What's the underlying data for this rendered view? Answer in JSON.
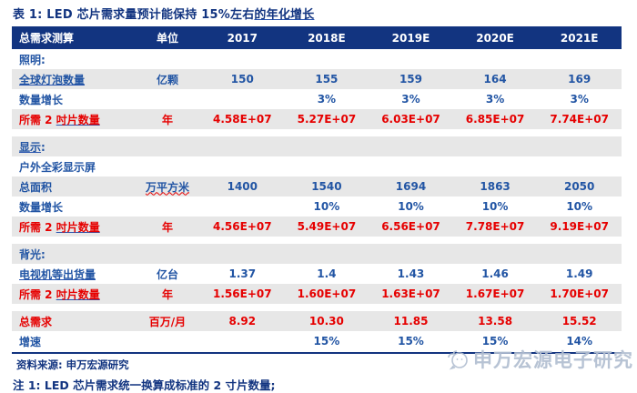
{
  "title": {
    "parts": [
      {
        "t": "表 1: LED 芯片需求量预计能保持 15%左右"
      },
      {
        "t": "的年化增长",
        "u": true
      }
    ]
  },
  "header": {
    "columns": [
      "总需求测算",
      "单位",
      "2017",
      "2018E",
      "2019E",
      "2020E",
      "2021E"
    ]
  },
  "rows": [
    {
      "name": "lighting-section",
      "bg": "white",
      "color": "blue",
      "label": [
        {
          "t": "照明:"
        }
      ]
    },
    {
      "name": "global-bulb-count",
      "bg": "gray",
      "color": "blue",
      "label": [
        {
          "t": "全球灯泡数量",
          "u": true
        }
      ],
      "unit": [
        {
          "t": "亿颗"
        }
      ],
      "values": [
        "150",
        "155",
        "159",
        "164",
        "169"
      ]
    },
    {
      "name": "lighting-qty-growth",
      "bg": "white",
      "color": "blue",
      "label": [
        {
          "t": "数量增长"
        }
      ],
      "values": [
        "",
        "3%",
        "3%",
        "3%",
        "3%"
      ]
    },
    {
      "name": "lighting-wafers-needed",
      "bg": "gray",
      "color": "red",
      "label": [
        {
          "t": "所需 2 "
        },
        {
          "t": "吋片数量",
          "u": true
        }
      ],
      "unit": [
        {
          "t": "年"
        }
      ],
      "values": [
        "4.58E+07",
        "5.27E+07",
        "6.03E+07",
        "6.85E+07",
        "7.74E+07"
      ]
    },
    {
      "gap": true
    },
    {
      "name": "display-section",
      "bg": "gray",
      "color": "blue",
      "label": [
        {
          "t": "显示",
          "u": true
        },
        {
          "t": ":"
        }
      ]
    },
    {
      "name": "outdoor-fullcolor-screens",
      "bg": "white",
      "color": "blue",
      "label": [
        {
          "t": "户外全彩显示屏"
        }
      ]
    },
    {
      "name": "total-area",
      "bg": "gray",
      "color": "blue",
      "label": [
        {
          "t": "总面积"
        }
      ],
      "unit": [
        {
          "t": "万平方米",
          "w": true
        }
      ],
      "values": [
        "1400",
        "1540",
        "1694",
        "1863",
        "2050"
      ]
    },
    {
      "name": "display-qty-growth",
      "bg": "white",
      "color": "blue",
      "label": [
        {
          "t": "数量增长"
        }
      ],
      "values": [
        "",
        "10%",
        "10%",
        "10%",
        "10%"
      ]
    },
    {
      "name": "display-wafers-needed",
      "bg": "gray",
      "color": "red",
      "label": [
        {
          "t": "所需 2 "
        },
        {
          "t": "吋片数量",
          "u": true
        }
      ],
      "unit": [
        {
          "t": "年"
        }
      ],
      "values": [
        "4.56E+07",
        "5.49E+07",
        "6.56E+07",
        "7.78E+07",
        "9.19E+07"
      ]
    },
    {
      "gap": true
    },
    {
      "name": "backlight-section",
      "bg": "gray",
      "color": "blue",
      "label": [
        {
          "t": "背光:"
        }
      ]
    },
    {
      "name": "tv-shipments",
      "bg": "white",
      "color": "blue",
      "label": [
        {
          "t": "电视机等出货量",
          "u": true
        }
      ],
      "unit": [
        {
          "t": "亿台"
        }
      ],
      "values": [
        "1.37",
        "1.4",
        "1.43",
        "1.46",
        "1.49"
      ]
    },
    {
      "name": "backlight-wafers-needed",
      "bg": "gray",
      "color": "red",
      "label": [
        {
          "t": "所需 2 "
        },
        {
          "t": "吋片数量",
          "u": true
        }
      ],
      "unit": [
        {
          "t": "年"
        }
      ],
      "values": [
        "1.56E+07",
        "1.60E+07",
        "1.63E+07",
        "1.67E+07",
        "1.70E+07"
      ]
    },
    {
      "gap": true
    },
    {
      "name": "total-demand",
      "bg": "gray",
      "color": "red",
      "label": [
        {
          "t": "总需求"
        }
      ],
      "unit": [
        {
          "t": "百万/月"
        }
      ],
      "values": [
        "8.92",
        "10.30",
        "11.85",
        "13.58",
        "15.52"
      ]
    },
    {
      "name": "growth-rate",
      "bg": "white",
      "color": "blue",
      "label": [
        {
          "t": "增速"
        }
      ],
      "values": [
        "",
        "15%",
        "15%",
        "15%",
        "14%"
      ]
    }
  ],
  "footer": {
    "source": "资料来源: 申万宏源研究",
    "note": "注 1: LED 芯片需求统一换算成标准的 2 寸片数量;"
  },
  "watermark": {
    "text": "申万宏源电子研究",
    "icon": "chat-bubble-icon"
  },
  "colors": {
    "navy": "#123480",
    "blue": "#2255a4",
    "red": "#e60000",
    "row_gray": "#e7e7e7",
    "watermark": "#b4c0d2"
  }
}
